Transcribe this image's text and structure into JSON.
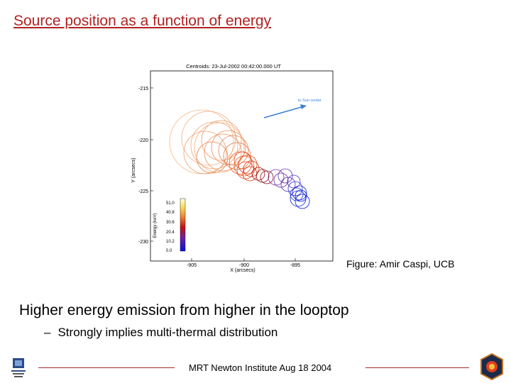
{
  "slide": {
    "title": "Source position as a function of energy",
    "credit": "Figure: Amir Caspi, UCB",
    "bullet_main": "Higher energy emission from higher in the looptop",
    "bullet_sub_dash": "–",
    "bullet_sub": "Strongly implies multi-thermal distribution",
    "footer": "MRT Newton Institute Aug 18 2004"
  },
  "figure": {
    "plot_title": "Centroids: 23-Jul-2002 00:42:00.000 UT",
    "xlabel": "X (arcsecs)",
    "ylabel": "Y (arcsecs)",
    "x_ticks": [
      "-905",
      "-900",
      "-895"
    ],
    "y_ticks": [
      "-215",
      "-220",
      "-225",
      "-230"
    ],
    "arrow_label": "to Sun center",
    "colorbar_label": "Energy (keV)",
    "colorbar_ticks": [
      "51.0",
      "40.8",
      "30.6",
      "20.4",
      "10.2",
      "0.0"
    ]
  },
  "colors": {
    "title": "#b22222",
    "footer_line": "#a52a2a",
    "arrow": "#3a7fd5"
  }
}
